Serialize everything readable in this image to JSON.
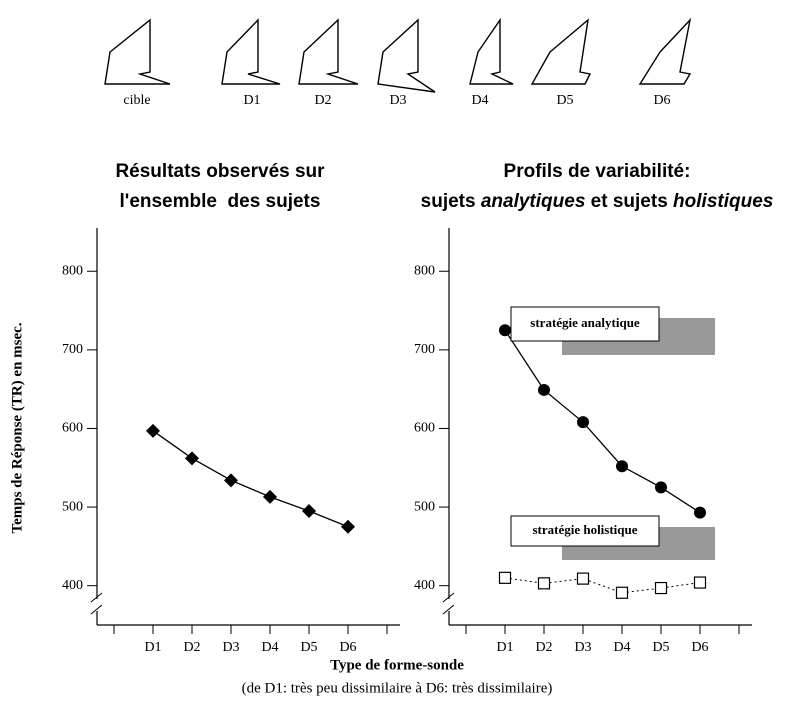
{
  "shapes": {
    "labels": [
      "cible",
      "D1",
      "D2",
      "D3",
      "D4",
      "D5",
      "D6"
    ]
  },
  "y_axis_label": "Temps de Réponse (TR) en msec.",
  "x_axis_label": "Type de forme-sonde",
  "x_axis_note": "(de D1: très peu dissimilaire à D6: très dissimilaire)",
  "chart_data": [
    {
      "type": "line",
      "title_lines": [
        [
          {
            "text": "Résultats observés sur",
            "italic": false
          }
        ],
        [
          {
            "text": "l'ensemble  des sujets",
            "italic": false
          }
        ]
      ],
      "categories": [
        null,
        "D1",
        "D2",
        "D3",
        "D4",
        "D5",
        "D6",
        null
      ],
      "ylim": [
        350,
        855
      ],
      "yticks": [
        400,
        500,
        600,
        700,
        800
      ],
      "y_axis_break": true,
      "series": [
        {
          "color": "#000000",
          "marker": "diamond",
          "line_style": "solid",
          "values": [
            null,
            597,
            562,
            534,
            513,
            495,
            475,
            null
          ]
        }
      ]
    },
    {
      "type": "line",
      "title_lines": [
        [
          {
            "text": "Profils de variabilité:",
            "italic": false
          }
        ],
        [
          {
            "text": "sujets ",
            "italic": false
          },
          {
            "text": "analytiques",
            "italic": true
          },
          {
            "text": " et sujets ",
            "italic": false
          },
          {
            "text": "holistiques",
            "italic": true
          }
        ]
      ],
      "categories": [
        null,
        "D1",
        "D2",
        "D3",
        "D4",
        "D5",
        "D6",
        null
      ],
      "ylim": [
        350,
        855
      ],
      "yticks": [
        400,
        500,
        600,
        700,
        800
      ],
      "y_axis_break": true,
      "series": [
        {
          "name": "stratégie analytique",
          "color": "#000000",
          "marker": "circle",
          "line_style": "solid",
          "values": [
            null,
            725,
            649,
            608,
            552,
            525,
            493,
            null
          ]
        },
        {
          "name": "stratégie holistique",
          "color": "#000000",
          "marker": "open-square",
          "line_style": "dotted",
          "values": [
            null,
            410,
            403,
            409,
            391,
            397,
            404,
            null
          ]
        }
      ]
    }
  ]
}
